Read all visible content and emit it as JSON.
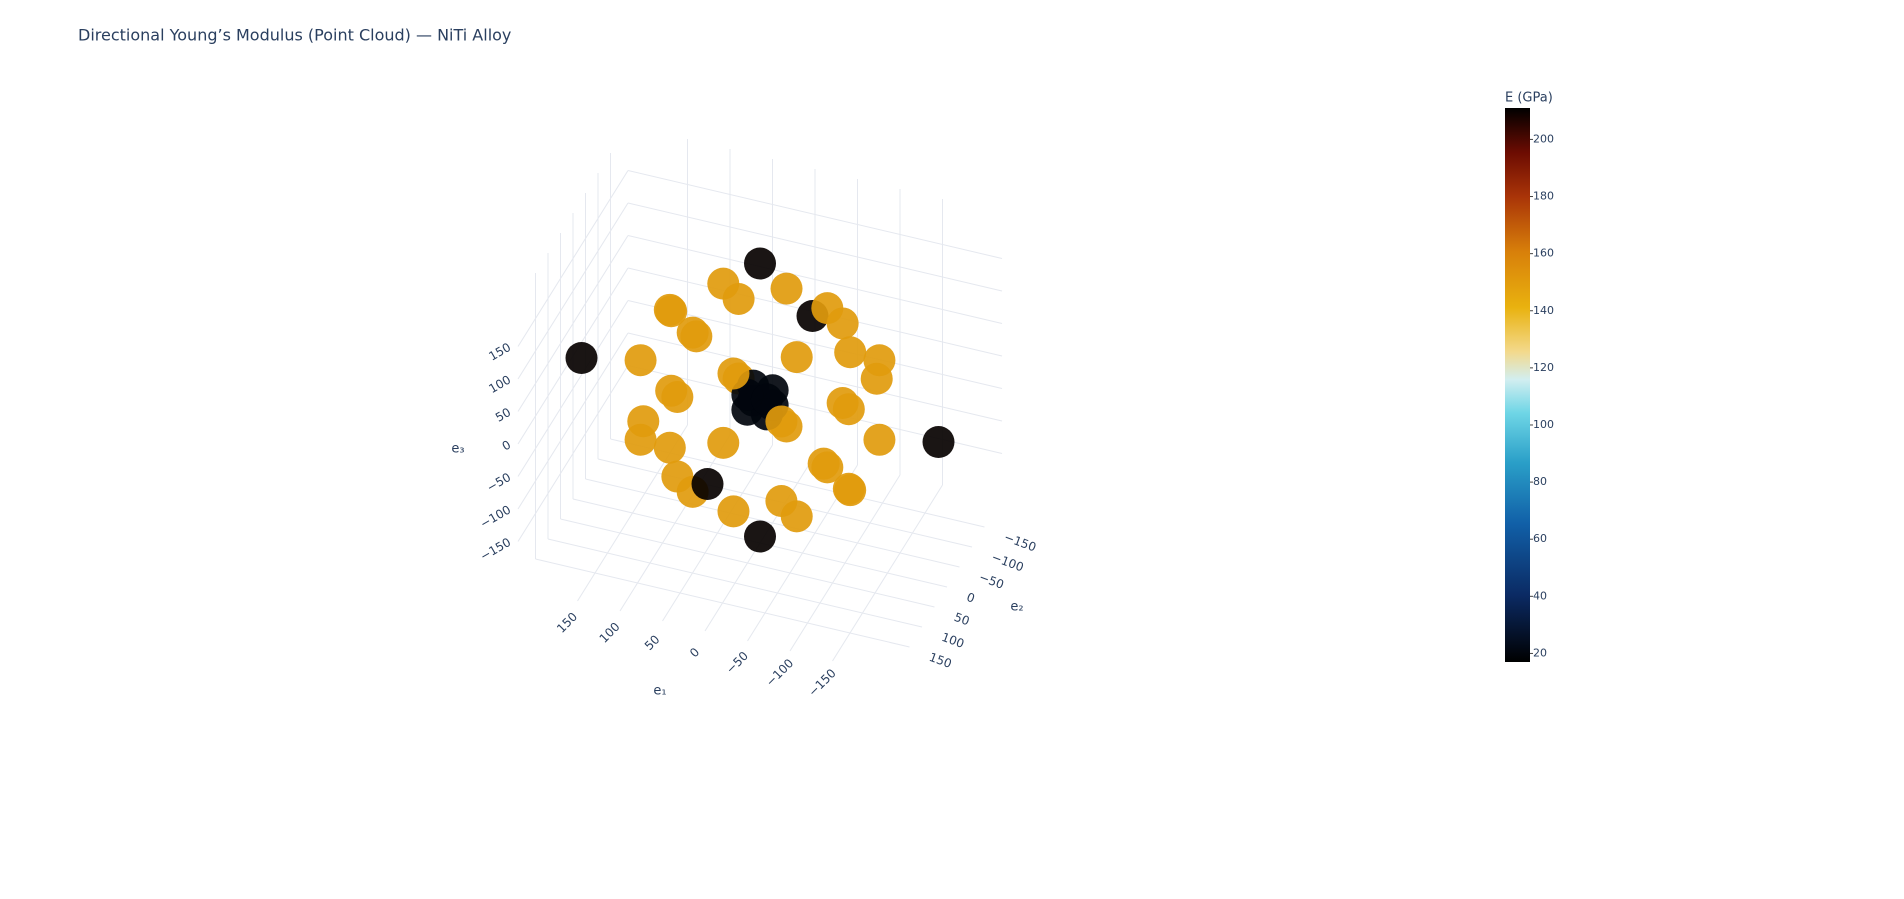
{
  "chart_data": {
    "type": "scatter3d",
    "title": "Directional Young’s Modulus (Point Cloud) — NiTi Alloy",
    "xlabel": "e₁",
    "ylabel": "e₂",
    "zlabel": "e₃",
    "xlim": [
      -220,
      220
    ],
    "ylim": [
      -220,
      220
    ],
    "zlim": [
      -220,
      220
    ],
    "xticks": [
      {
        "value": -150,
        "label": "−150"
      },
      {
        "value": -100,
        "label": "−100"
      },
      {
        "value": -50,
        "label": "−50"
      },
      0,
      50,
      100,
      150
    ],
    "yticks": [
      {
        "value": -150,
        "label": "−150"
      },
      {
        "value": -100,
        "label": "−100"
      },
      {
        "value": -50,
        "label": "−50"
      },
      0,
      50,
      100,
      150
    ],
    "zticks": [
      {
        "value": -150,
        "label": "−150"
      },
      {
        "value": -100,
        "label": "−100"
      },
      {
        "value": -50,
        "label": "−50"
      },
      0,
      50,
      100,
      150
    ],
    "grid": true,
    "x": [
      210,
      -210,
      0,
      0,
      0,
      0,
      106.1,
      106.1,
      -106.1,
      -106.1,
      106.1,
      106.1,
      -106.1,
      -106.1,
      0,
      0,
      0,
      0,
      11.5,
      11.5,
      11.5,
      11.5,
      -11.5,
      -11.5,
      -11.5,
      -11.5,
      122.5,
      122.5,
      122.5,
      122.5,
      -122.5,
      -122.5,
      -122.5,
      -122.5,
      61.2,
      61.2,
      -61.2,
      -61.2,
      61.2,
      61.2,
      -61.2,
      -61.2,
      61.2,
      61.2,
      -61.2,
      -61.2,
      61.2,
      61.2,
      -61.2,
      -61.2
    ],
    "y": [
      0,
      0,
      210,
      -210,
      0,
      0,
      106.1,
      -106.1,
      106.1,
      -106.1,
      0,
      0,
      0,
      0,
      106.1,
      106.1,
      -106.1,
      -106.1,
      11.5,
      11.5,
      -11.5,
      -11.5,
      11.5,
      11.5,
      -11.5,
      -11.5,
      61.2,
      61.2,
      -61.2,
      -61.2,
      61.2,
      61.2,
      -61.2,
      -61.2,
      122.5,
      122.5,
      122.5,
      122.5,
      -122.5,
      -122.5,
      -122.5,
      -122.5,
      61.2,
      -61.2,
      61.2,
      -61.2,
      61.2,
      -61.2,
      61.2,
      -61.2
    ],
    "z": [
      0,
      0,
      0,
      0,
      210,
      -210,
      0,
      0,
      0,
      0,
      106.1,
      -106.1,
      106.1,
      -106.1,
      106.1,
      -106.1,
      106.1,
      -106.1,
      11.5,
      -11.5,
      11.5,
      -11.5,
      11.5,
      -11.5,
      11.5,
      -11.5,
      61.2,
      -61.2,
      61.2,
      -61.2,
      61.2,
      -61.2,
      61.2,
      -61.2,
      61.2,
      -61.2,
      61.2,
      -61.2,
      61.2,
      -61.2,
      61.2,
      -61.2,
      122.5,
      122.5,
      122.5,
      122.5,
      -122.5,
      -122.5,
      -122.5,
      -122.5
    ],
    "values": [
      210,
      210,
      210,
      210,
      210,
      210,
      150,
      150,
      150,
      150,
      150,
      150,
      150,
      150,
      150,
      150,
      150,
      150,
      20,
      20,
      20,
      20,
      20,
      20,
      20,
      20,
      150,
      150,
      150,
      150,
      150,
      150,
      150,
      150,
      150,
      150,
      150,
      150,
      150,
      150,
      150,
      150,
      150,
      150,
      150,
      150,
      150,
      150,
      150,
      150
    ],
    "colorbar_title": "E (GPa)",
    "clim": [
      17,
      211
    ],
    "cticks": [
      20,
      40,
      60,
      80,
      100,
      120,
      140,
      160,
      180,
      200
    ],
    "colorscale": [
      [
        0,
        "#000000"
      ],
      [
        0.12,
        "#0b2a63"
      ],
      [
        0.25,
        "#1160a8"
      ],
      [
        0.36,
        "#2a9fc8"
      ],
      [
        0.45,
        "#6fd6e6"
      ],
      [
        0.51,
        "#d2eef0"
      ],
      [
        0.56,
        "#f3d98c"
      ],
      [
        0.64,
        "#e9b20f"
      ],
      [
        0.74,
        "#d8800a"
      ],
      [
        0.84,
        "#a93408"
      ],
      [
        0.92,
        "#6c0c02"
      ],
      [
        1,
        "#000000"
      ]
    ]
  }
}
